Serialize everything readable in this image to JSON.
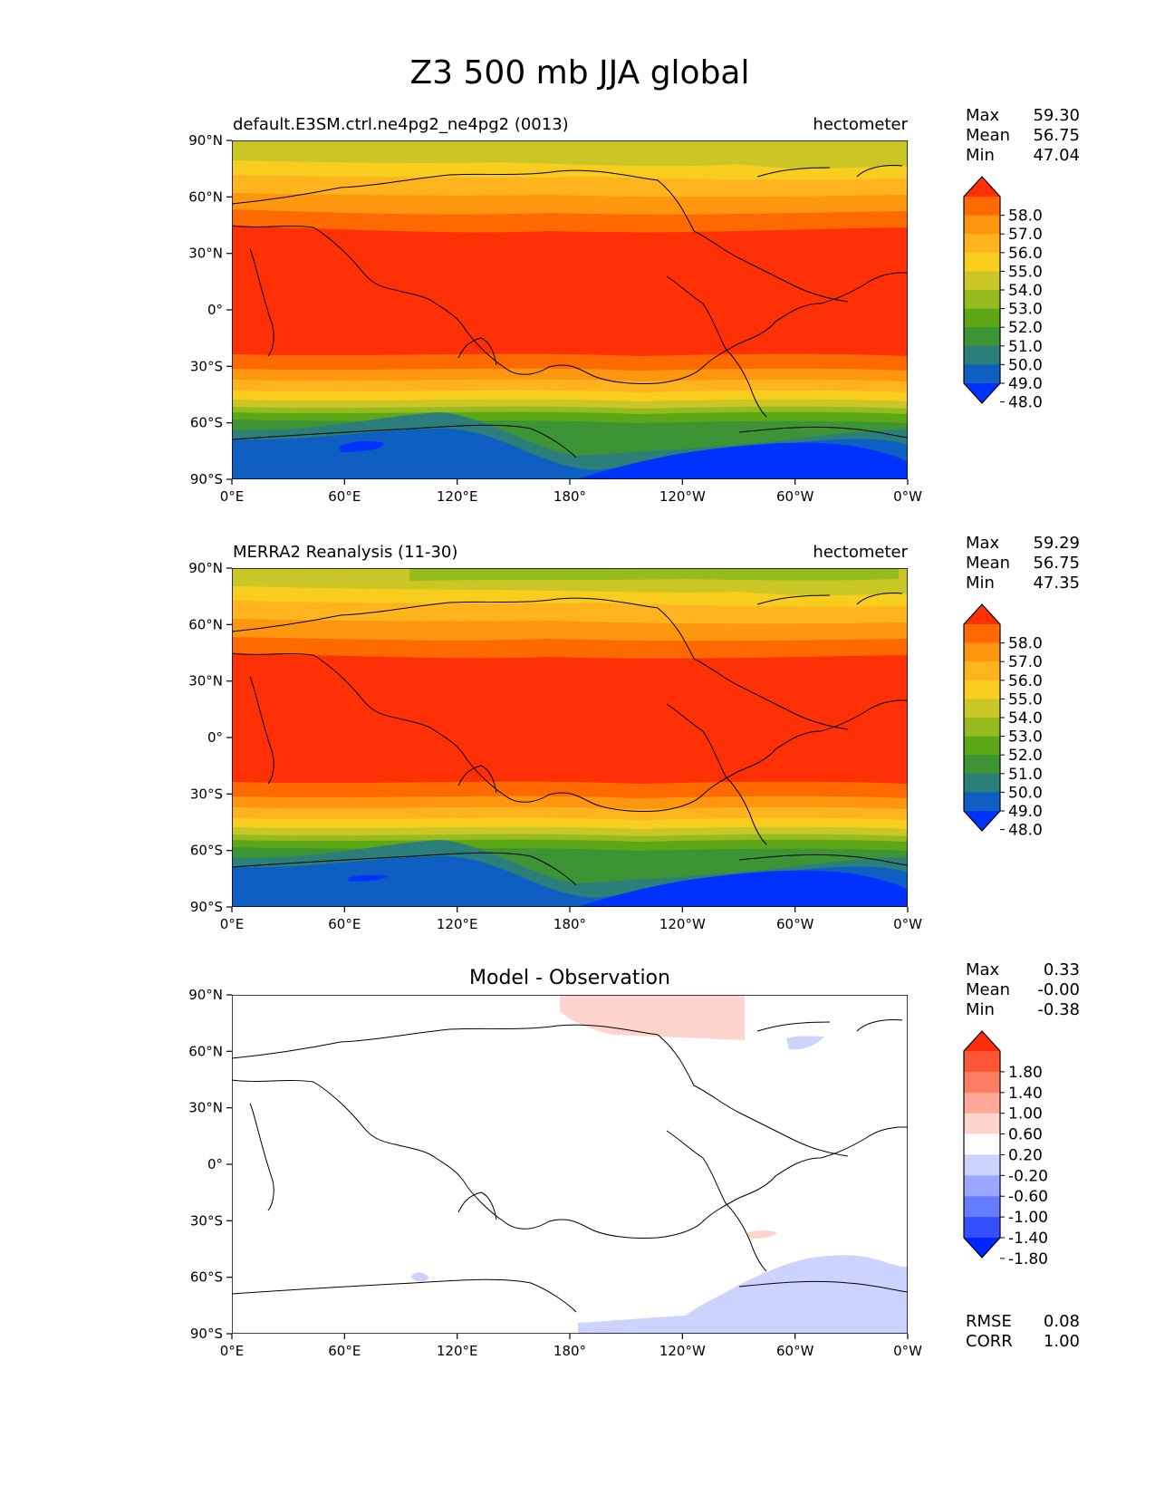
{
  "figure": {
    "title": "Z3 500 mb JJA global"
  },
  "axis_ticks": {
    "x": [
      "0°E",
      "60°E",
      "120°E",
      "180°",
      "120°W",
      "60°W",
      "0°W"
    ],
    "y": [
      "90°N",
      "60°N",
      "30°N",
      "0°",
      "30°S",
      "60°S",
      "90°S"
    ]
  },
  "panels": [
    {
      "left_title": "default.E3SM.ctrl.ne4pg2_ne4pg2 (0013)",
      "center_title": "",
      "units": "hectometer",
      "stats": [
        {
          "label": "Max",
          "value": "59.30"
        },
        {
          "label": "Mean",
          "value": "56.75"
        },
        {
          "label": "Min",
          "value": "47.04"
        }
      ],
      "colorbar_labels": [
        "58.0",
        "57.0",
        "56.0",
        "55.0",
        "54.0",
        "53.0",
        "52.0",
        "51.0",
        "50.0",
        "49.0",
        "48.0"
      ],
      "colorbar_colors": [
        "#ff3005",
        "#ff6a00",
        "#ff9610",
        "#ffb41e",
        "#f8cd1e",
        "#c9c625",
        "#96bb1e",
        "#5ba715",
        "#3d9435",
        "#2c7e7a",
        "#0d5fc2",
        "#0032ff"
      ]
    },
    {
      "left_title": "MERRA2 Reanalysis (11-30)",
      "center_title": "",
      "units": "hectometer",
      "stats": [
        {
          "label": "Max",
          "value": "59.29"
        },
        {
          "label": "Mean",
          "value": "56.75"
        },
        {
          "label": "Min",
          "value": "47.35"
        }
      ],
      "colorbar_labels": [
        "58.0",
        "57.0",
        "56.0",
        "55.0",
        "54.0",
        "53.0",
        "52.0",
        "51.0",
        "50.0",
        "49.0",
        "48.0"
      ],
      "colorbar_colors": [
        "#ff3005",
        "#ff6a00",
        "#ff9610",
        "#ffb41e",
        "#f8cd1e",
        "#c9c625",
        "#96bb1e",
        "#5ba715",
        "#3d9435",
        "#2c7e7a",
        "#0d5fc2",
        "#0032ff"
      ]
    },
    {
      "left_title": "",
      "center_title": "Model - Observation",
      "units": "",
      "stats": [
        {
          "label": "Max",
          "value": "0.33"
        },
        {
          "label": "Mean",
          "value": "-0.00"
        },
        {
          "label": "Min",
          "value": "-0.38"
        }
      ],
      "colorbar_labels": [
        "1.80",
        "1.40",
        "1.00",
        "0.60",
        "0.20",
        "-0.20",
        "-0.60",
        "-1.00",
        "-1.40",
        "-1.80"
      ],
      "colorbar_colors": [
        "#ff2b0a",
        "#ff5537",
        "#ff7d63",
        "#ffa898",
        "#ffd4cc",
        "#ffffff",
        "#ccd3ff",
        "#99a7ff",
        "#667cff",
        "#3350ff",
        "#0026ff"
      ],
      "footer_stats": [
        {
          "label": "RMSE",
          "value": "0.08"
        },
        {
          "label": "CORR",
          "value": "1.00"
        }
      ]
    }
  ]
}
